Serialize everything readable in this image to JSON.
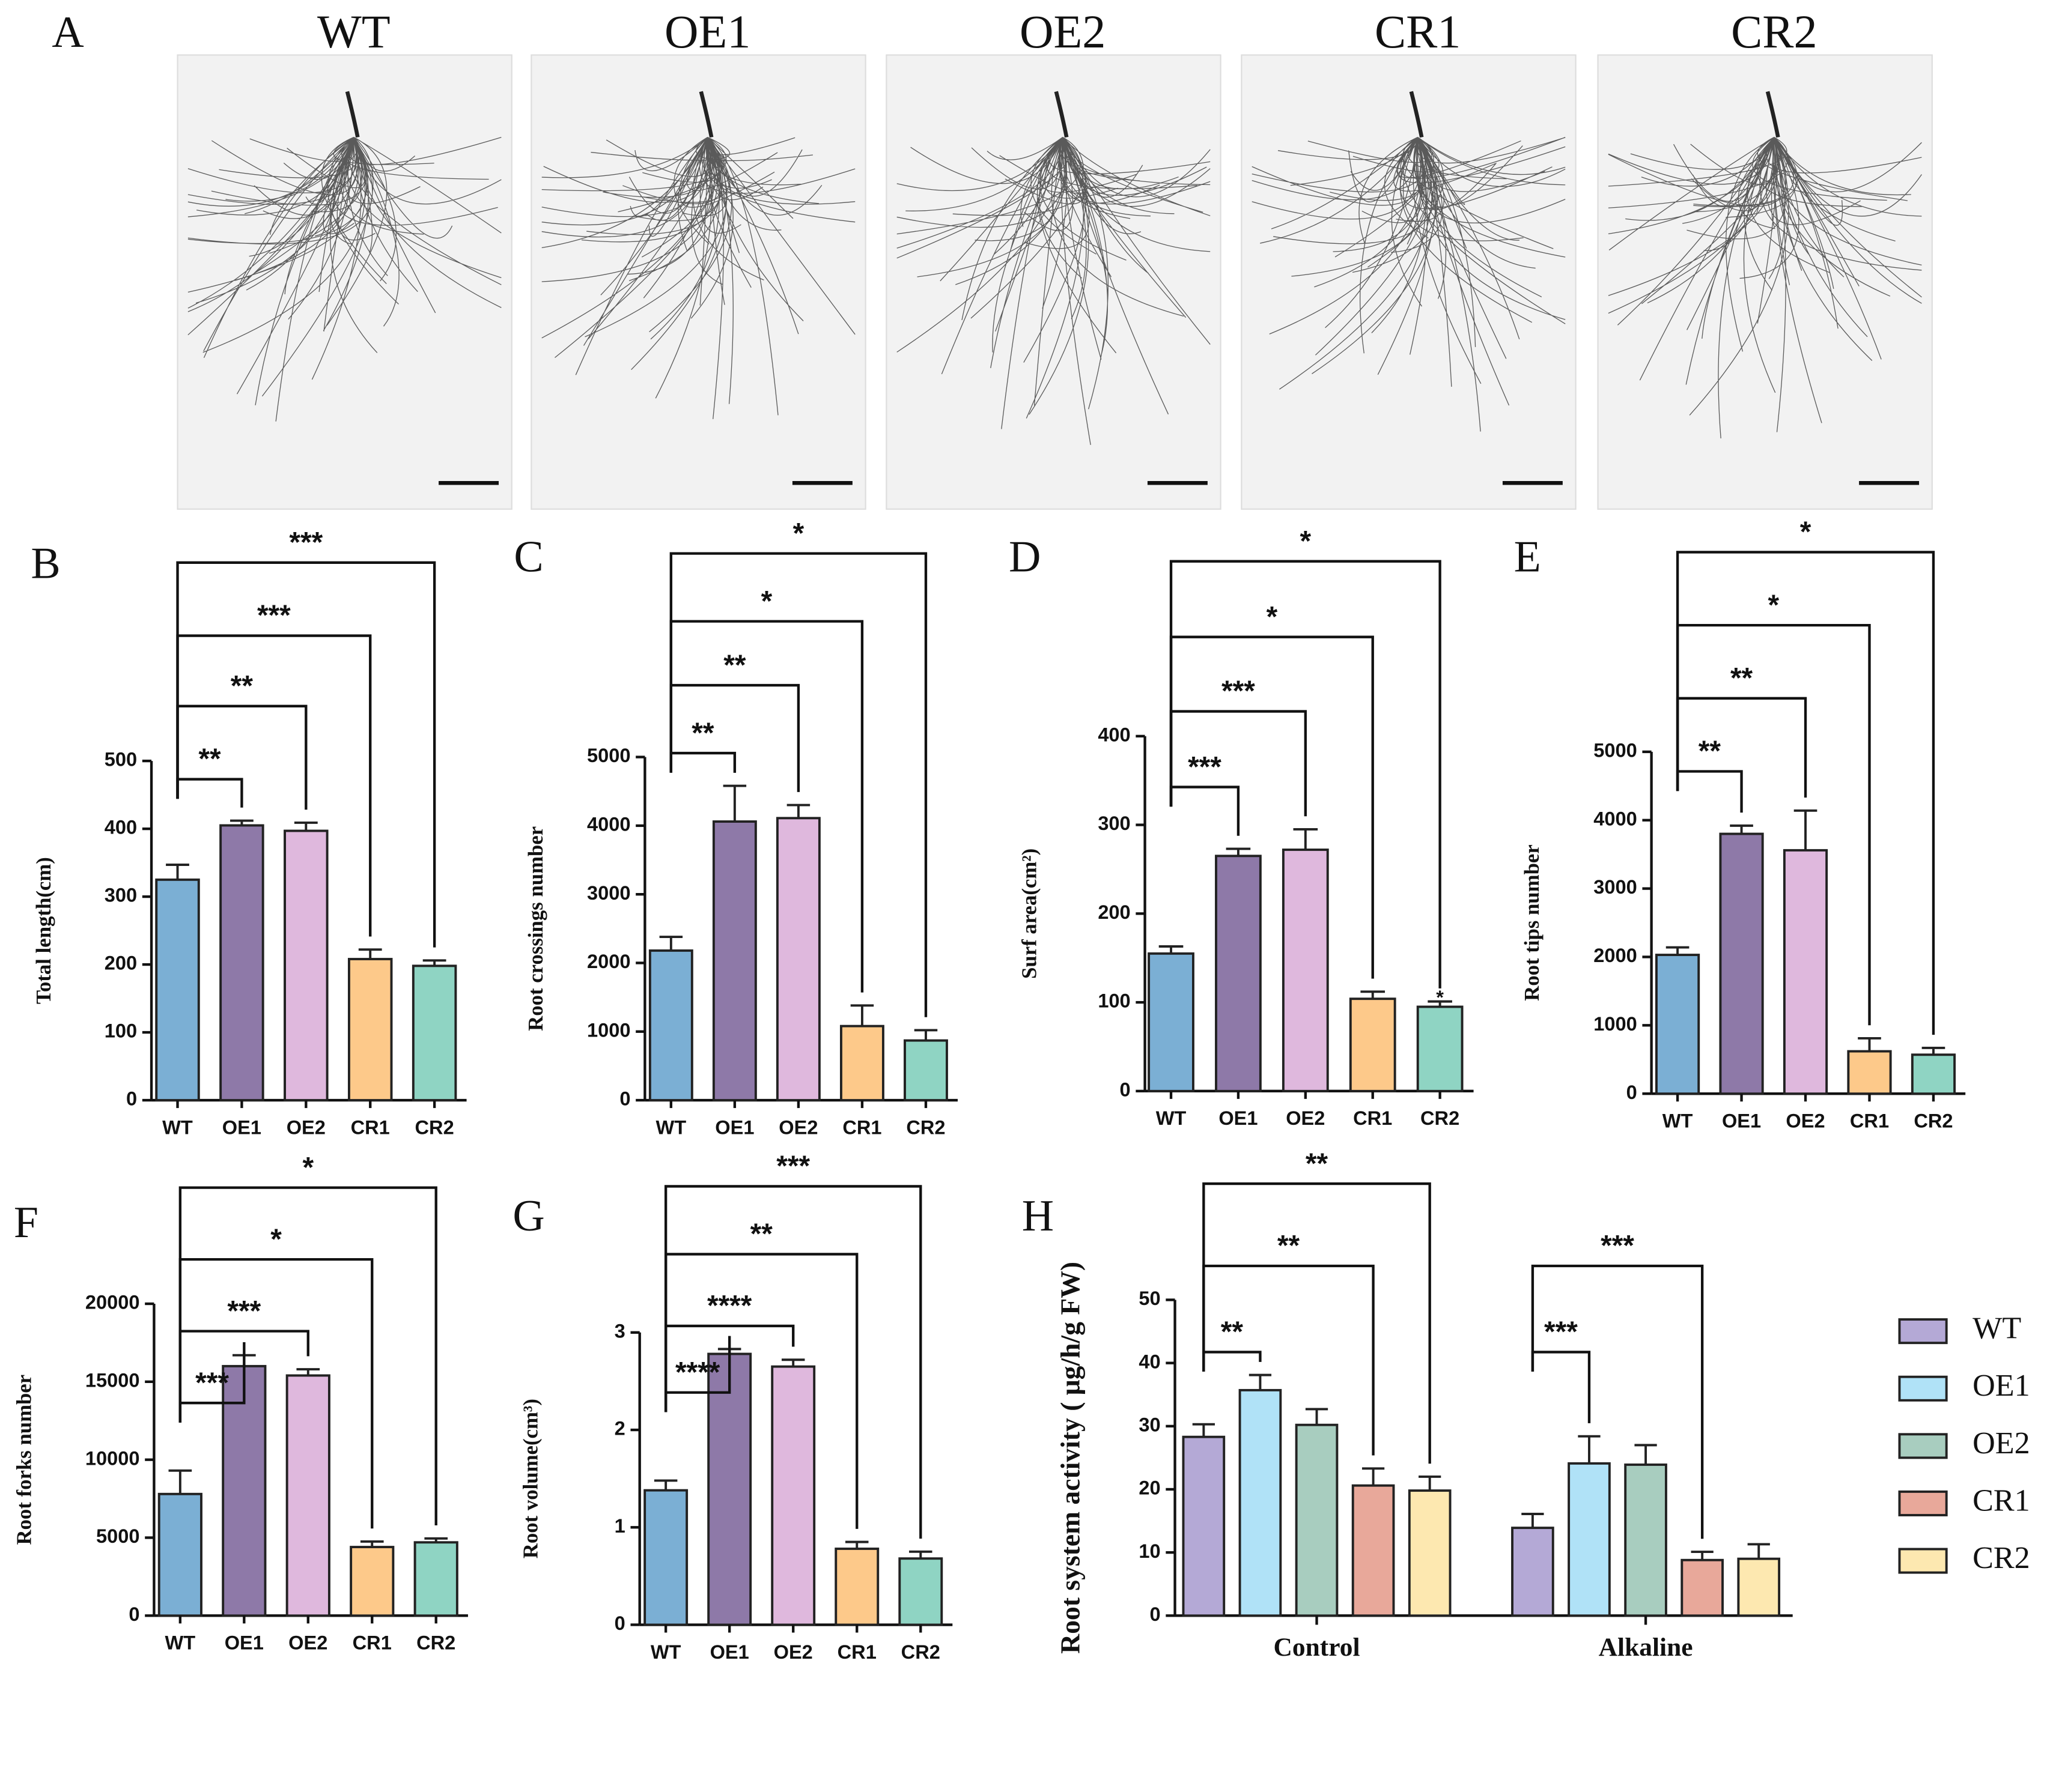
{
  "panel_a": {
    "label": "A",
    "titles": [
      "WT",
      "OE1",
      "OE2",
      "CR1",
      "CR2"
    ]
  },
  "chart_data": [
    {
      "type": "bar",
      "label": "B",
      "ylabel": "Total length(cm)",
      "categories": [
        "WT",
        "OE1",
        "OE2",
        "CR1",
        "CR2"
      ],
      "values": [
        325,
        405,
        397,
        208,
        198
      ],
      "errors": [
        22,
        7,
        12,
        14,
        8
      ],
      "colors": [
        "#7bafd4",
        "#8e79a8",
        "#dfb8dd",
        "#fdc98a",
        "#8fd4c3"
      ],
      "ylim": [
        0,
        500
      ],
      "yticks": [
        0,
        100,
        200,
        300,
        400,
        500
      ],
      "significance": [
        null,
        "**",
        "**",
        "***",
        "***"
      ]
    },
    {
      "type": "bar",
      "label": "C",
      "ylabel": "Root crossings number",
      "categories": [
        "WT",
        "OE1",
        "OE2",
        "CR1",
        "CR2"
      ],
      "values": [
        2180,
        4060,
        4110,
        1080,
        870
      ],
      "errors": [
        200,
        520,
        190,
        300,
        150
      ],
      "colors": [
        "#7bafd4",
        "#8e79a8",
        "#dfb8dd",
        "#fdc98a",
        "#8fd4c3"
      ],
      "ylim": [
        0,
        5000
      ],
      "yticks": [
        0,
        1000,
        2000,
        3000,
        4000,
        5000
      ],
      "significance": [
        null,
        "**",
        "**",
        "*",
        "*"
      ]
    },
    {
      "type": "bar",
      "label": "D",
      "ylabel": "Surf area(cm²)",
      "categories": [
        "WT",
        "OE1",
        "OE2",
        "CR1",
        "CR2"
      ],
      "values": [
        155,
        265,
        272,
        104,
        95
      ],
      "errors": [
        8,
        8,
        23,
        8,
        6
      ],
      "colors": [
        "#7bafd4",
        "#8e79a8",
        "#dfb8dd",
        "#fdc98a",
        "#8fd4c3"
      ],
      "ylim": [
        0,
        400
      ],
      "yticks": [
        0,
        100,
        200,
        300,
        400
      ],
      "significance": [
        null,
        "***",
        "***",
        "*",
        "*"
      ],
      "bar_annotations": [
        null,
        null,
        null,
        null,
        "*"
      ]
    },
    {
      "type": "bar",
      "label": "E",
      "ylabel": "Root tips number",
      "categories": [
        "WT",
        "OE1",
        "OE2",
        "CR1",
        "CR2"
      ],
      "values": [
        2030,
        3800,
        3560,
        620,
        570
      ],
      "errors": [
        110,
        120,
        580,
        190,
        100
      ],
      "colors": [
        "#7bafd4",
        "#8e79a8",
        "#dfb8dd",
        "#fdc98a",
        "#8fd4c3"
      ],
      "ylim": [
        0,
        5000
      ],
      "yticks": [
        0,
        1000,
        2000,
        3000,
        4000,
        5000
      ],
      "significance": [
        null,
        "**",
        "**",
        "*",
        "*"
      ]
    },
    {
      "type": "bar",
      "label": "F",
      "ylabel": "Root forks number",
      "categories": [
        "WT",
        "OE1",
        "OE2",
        "CR1",
        "CR2"
      ],
      "values": [
        7800,
        16000,
        15400,
        4400,
        4700
      ],
      "errors": [
        1500,
        700,
        400,
        350,
        250
      ],
      "colors": [
        "#7bafd4",
        "#8e79a8",
        "#dfb8dd",
        "#fdc98a",
        "#8fd4c3"
      ],
      "ylim": [
        0,
        20000
      ],
      "yticks": [
        0,
        5000,
        10000,
        15000,
        20000
      ],
      "significance": [
        null,
        "***",
        "***",
        "*",
        "*"
      ]
    },
    {
      "type": "bar",
      "label": "G",
      "ylabel": "Root volume(cm³)",
      "categories": [
        "WT",
        "OE1",
        "OE2",
        "CR1",
        "CR2"
      ],
      "values": [
        1.38,
        2.78,
        2.65,
        0.78,
        0.68
      ],
      "errors": [
        0.1,
        0.05,
        0.07,
        0.07,
        0.07
      ],
      "colors": [
        "#7bafd4",
        "#8e79a8",
        "#dfb8dd",
        "#fdc98a",
        "#8fd4c3"
      ],
      "ylim": [
        0,
        3
      ],
      "yticks": [
        0,
        1,
        2,
        3
      ],
      "significance": [
        null,
        "****",
        "****",
        "**",
        "***"
      ]
    },
    {
      "type": "grouped_bar",
      "label": "H",
      "ylabel": "Root system activity ( μg/h/g FW)",
      "categories": [
        "Control",
        "Alkaline"
      ],
      "series": [
        {
          "name": "WT",
          "color": "#b4a9d6",
          "values": [
            28.3,
            13.9
          ],
          "errors": [
            2.0,
            2.2
          ]
        },
        {
          "name": "OE1",
          "color": "#b0e2f7",
          "values": [
            35.7,
            24.1
          ],
          "errors": [
            2.4,
            4.3
          ]
        },
        {
          "name": "OE2",
          "color": "#a8cdbf",
          "values": [
            30.2,
            23.9
          ],
          "errors": [
            2.5,
            3.1
          ]
        },
        {
          "name": "CR1",
          "color": "#e8a89a",
          "values": [
            20.6,
            8.8
          ],
          "errors": [
            2.7,
            1.3
          ]
        },
        {
          "name": "CR2",
          "color": "#fde8b0",
          "values": [
            19.8,
            9.0
          ],
          "errors": [
            2.2,
            2.3
          ]
        }
      ],
      "ylim": [
        0,
        50
      ],
      "yticks": [
        0,
        10,
        20,
        30,
        40,
        50
      ],
      "significance": [
        [
          null,
          "**",
          null,
          "**",
          "**"
        ],
        [
          null,
          "***",
          null,
          "***",
          null
        ]
      ]
    }
  ]
}
